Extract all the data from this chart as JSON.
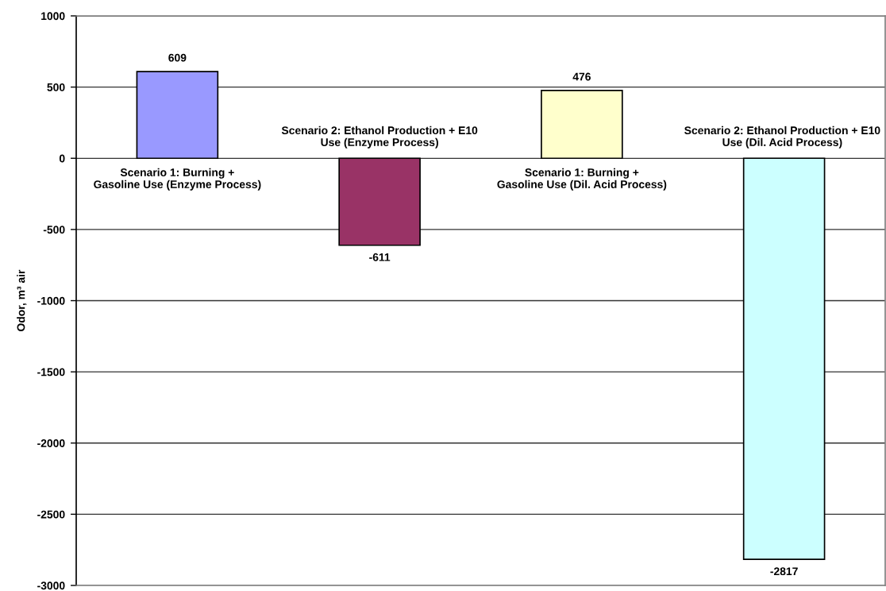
{
  "chart_data": {
    "type": "bar",
    "ylabel": "Odor, m³ air",
    "categories": [
      "Scenario 1: Burning +\nGasoline Use (Enzyme Process)",
      "Scenario 2: Ethanol Production + E10\nUse (Enzyme Process)",
      "Scenario 1: Burning +\nGasoline Use (Dil. Acid Process)",
      "Scenario 2: Ethanol Production + E10\nUse (Dil. Acid Process)"
    ],
    "values": [
      609,
      -611,
      476,
      -2817
    ],
    "colors": [
      "#9999ff",
      "#993366",
      "#ffffcc",
      "#ccffff"
    ],
    "ylim": [
      -3000,
      1000
    ],
    "yticks": [
      -3000,
      -2500,
      -2000,
      -1500,
      -1000,
      -500,
      0,
      500,
      1000
    ],
    "grid": "y",
    "data_labels": true
  }
}
